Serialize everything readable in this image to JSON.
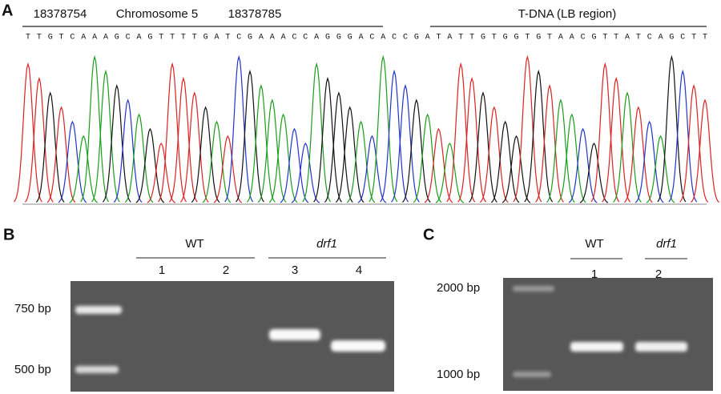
{
  "panel_a": {
    "label": "A",
    "start": "18378754",
    "chromosome": "Chromosome 5",
    "end": "18378785",
    "tdna": "T-DNA (LB region)",
    "sequence": "TTGTCAAAGCAGTTTTGATCGAAACCAGGGACACCGATATTGTGGTGTAACGTTATCAGCTT"
  },
  "panel_b": {
    "label": "B",
    "groups": [
      "WT",
      "drf1"
    ],
    "lanes": [
      "1",
      "2",
      "3",
      "4"
    ],
    "markers": [
      "750 bp",
      "500 bp"
    ]
  },
  "panel_c": {
    "label": "C",
    "groups": [
      "WT",
      "drf1"
    ],
    "lanes": [
      "1",
      "2"
    ],
    "markers": [
      "2000 bp",
      "1000 bp"
    ]
  }
}
